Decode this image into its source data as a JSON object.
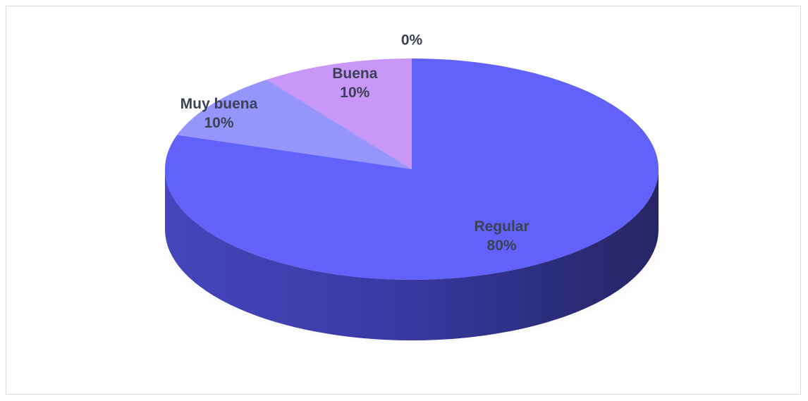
{
  "chart_data": {
    "type": "pie",
    "title": "",
    "slices": [
      {
        "label": "Regular",
        "value": 80,
        "value_label": "80%",
        "color": "#6262fa"
      },
      {
        "label": "Muy buena",
        "value": 10,
        "value_label": "10%",
        "color": "#9595fb"
      },
      {
        "label": "Buena",
        "value": 10,
        "value_label": "10%",
        "color": "#c897f7"
      },
      {
        "label": "",
        "value": 0,
        "value_label": "0%",
        "color": "#b0b0f8"
      }
    ],
    "style": "3d",
    "legend": "none"
  }
}
